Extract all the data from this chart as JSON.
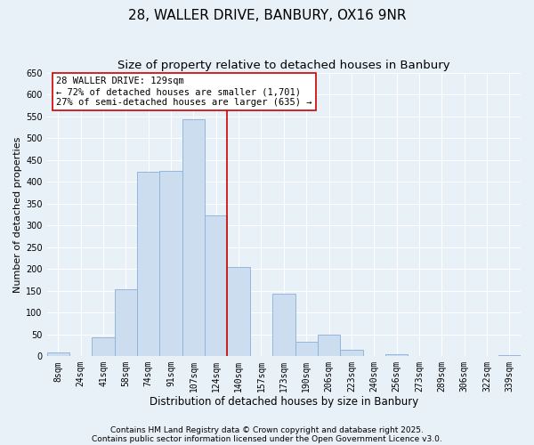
{
  "title": "28, WALLER DRIVE, BANBURY, OX16 9NR",
  "subtitle": "Size of property relative to detached houses in Banbury",
  "xlabel": "Distribution of detached houses by size in Banbury",
  "ylabel": "Number of detached properties",
  "categories": [
    "8sqm",
    "24sqm",
    "41sqm",
    "58sqm",
    "74sqm",
    "91sqm",
    "107sqm",
    "124sqm",
    "140sqm",
    "157sqm",
    "173sqm",
    "190sqm",
    "206sqm",
    "223sqm",
    "240sqm",
    "256sqm",
    "273sqm",
    "289sqm",
    "306sqm",
    "322sqm",
    "339sqm"
  ],
  "values": [
    8,
    0,
    44,
    153,
    422,
    424,
    544,
    323,
    205,
    0,
    143,
    34,
    49,
    14,
    0,
    4,
    0,
    0,
    0,
    0,
    2
  ],
  "bar_color": "#ccddf0",
  "bar_edge_color": "#8ab0d8",
  "vline_color": "#cc0000",
  "annotation_title": "28 WALLER DRIVE: 129sqm",
  "annotation_line1": "← 72% of detached houses are smaller (1,701)",
  "annotation_line2": "27% of semi-detached houses are larger (635) →",
  "annotation_box_color": "#ffffff",
  "annotation_box_edge": "#cc0000",
  "ylim": [
    0,
    650
  ],
  "yticks": [
    0,
    50,
    100,
    150,
    200,
    250,
    300,
    350,
    400,
    450,
    500,
    550,
    600,
    650
  ],
  "footnote1": "Contains HM Land Registry data © Crown copyright and database right 2025.",
  "footnote2": "Contains public sector information licensed under the Open Government Licence v3.0.",
  "bg_color": "#e8f0f8",
  "plot_bg_color": "#e8f0f8",
  "title_fontsize": 11,
  "subtitle_fontsize": 9.5,
  "xlabel_fontsize": 8.5,
  "ylabel_fontsize": 8,
  "tick_fontsize": 7,
  "annotation_fontsize": 7.5,
  "footnote_fontsize": 6.5,
  "grid_color": "#ffffff"
}
